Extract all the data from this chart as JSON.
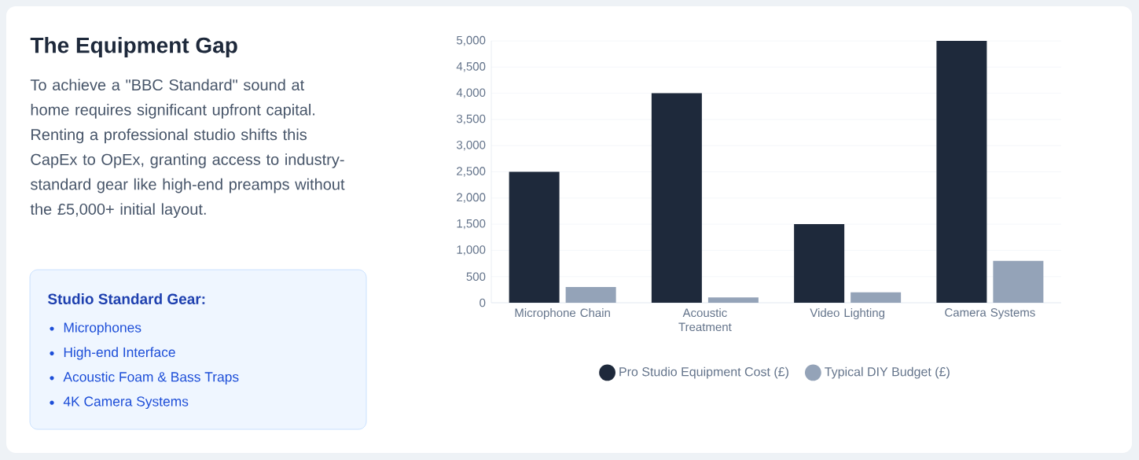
{
  "chart_data": {
    "type": "bar",
    "title": "The Equipment Gap",
    "subtitle": "To achieve a \"BBC Standard\" sound at home requires significant upfront capital. Renting a professional studio shifts this CapEx to OpEx, granting access to industry-standard gear like high-end preamps without the £5,000+ initial layout.",
    "annotations": [
      "Studio Standard Gear:",
      "Microphones",
      "High-end Interface",
      "Acoustic Foam & Bass Traps",
      "4K Camera Systems"
    ],
    "categories": [
      "Microphone Chain",
      "Acoustic Treatment",
      "Video Lighting",
      "Camera Systems"
    ],
    "series": [
      {
        "name": "Pro Studio Equipment Cost (£)",
        "color": "#1e293b",
        "values": [
          2500,
          4000,
          1500,
          5000
        ]
      },
      {
        "name": "Typical DIY Budget (£)",
        "color": "#94a3b8",
        "values": [
          300,
          100,
          200,
          800
        ]
      }
    ],
    "ylim": [
      0,
      5000
    ],
    "yticks": [
      {
        "value": 0,
        "label": "0"
      },
      {
        "value": 500,
        "label": "500"
      },
      {
        "value": 1000,
        "label": "1,000"
      },
      {
        "value": 1500,
        "label": "1,500"
      },
      {
        "value": 2000,
        "label": "2,000"
      },
      {
        "value": 2500,
        "label": "2,500"
      },
      {
        "value": 3000,
        "label": "3,000"
      },
      {
        "value": 3500,
        "label": "3,500"
      },
      {
        "value": 4000,
        "label": "4,000"
      },
      {
        "value": 4500,
        "label": "4,500"
      },
      {
        "value": 5000,
        "label": "5,000"
      }
    ],
    "grid": "y",
    "legend": "bottom"
  }
}
